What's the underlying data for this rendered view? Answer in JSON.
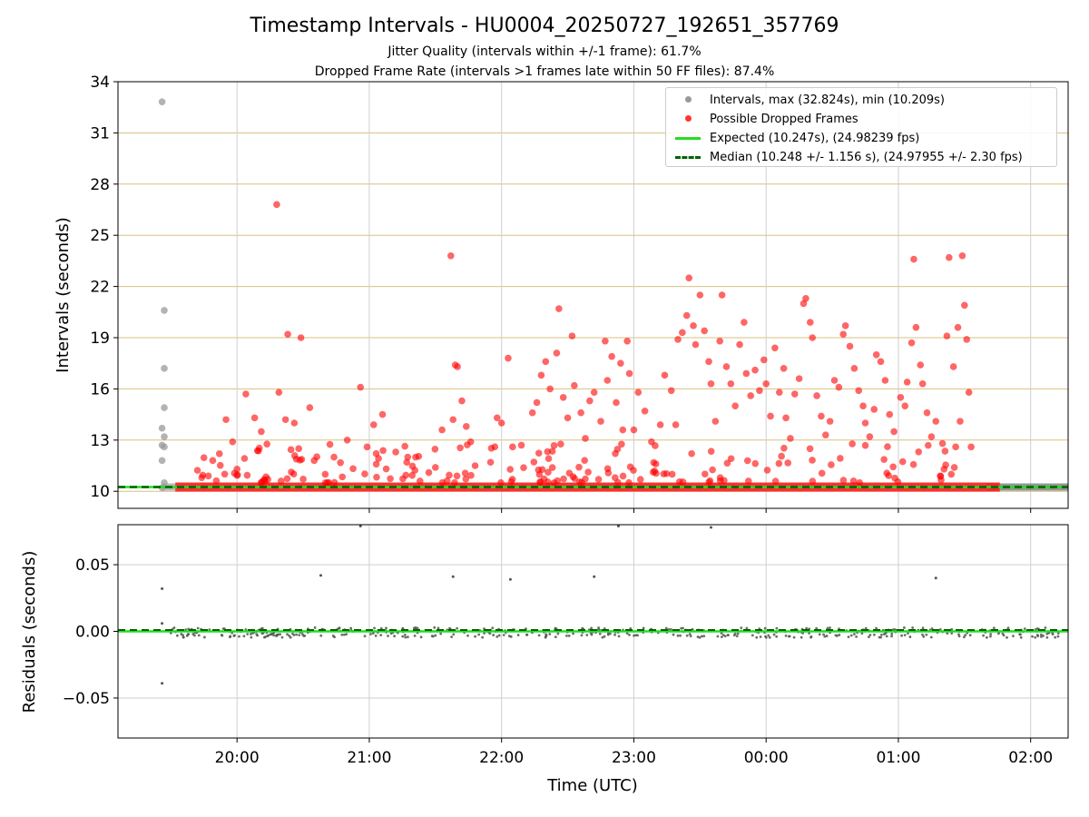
{
  "title": "Timestamp Intervals - HU0004_20250727_192651_357769",
  "subtitle_jitter": "Jitter Quality (intervals within +/-1 frame): 61.7%",
  "subtitle_dropped": "Dropped Frame Rate (intervals >1 frames late within 50 FF files): 87.4%",
  "colors": {
    "intervals": "#999999",
    "dropped": "#ff0000",
    "expected": "#22dd22",
    "median": "#006400",
    "hgrid": "#d8c080",
    "vgrid": "#cfcfcf",
    "residual": "#555555"
  },
  "chart_data": [
    {
      "type": "scatter",
      "ylabel": "Intervals (seconds)",
      "xlim": [
        "19:06",
        "02:17"
      ],
      "ylim": [
        9.0,
        34.0
      ],
      "yticks": [
        10,
        13,
        16,
        19,
        22,
        25,
        28,
        31,
        34
      ],
      "grid": true,
      "legend_position": "top-right",
      "legend": [
        "Intervals, max (32.824s), min (10.209s)",
        "Possible Dropped Frames",
        "Expected (10.247s), (24.98239 fps)",
        "Median (10.248 +/- 1.156 s), (24.97955 +/- 2.30 fps)"
      ],
      "expected": 10.247,
      "median": 10.248,
      "series": [
        {
          "name": "Intervals, max (32.824s), min (10.209s)",
          "points": [
            [
              "19:26",
              32.82
            ],
            [
              "19:27",
              20.6
            ],
            [
              "19:27",
              17.2
            ],
            [
              "19:27",
              14.9
            ],
            [
              "19:26",
              13.7
            ],
            [
              "19:27",
              13.2
            ],
            [
              "19:26",
              12.7
            ],
            [
              "19:27",
              12.6
            ],
            [
              "19:26",
              11.8
            ],
            [
              "19:27",
              10.5
            ],
            [
              "19:26",
              10.21
            ]
          ]
        },
        {
          "name": "Possible Dropped Frames",
          "points": [
            [
              "20:18",
              26.8
            ],
            [
              "20:23",
              19.2
            ],
            [
              "20:29",
              19.0
            ],
            [
              "20:19",
              15.8
            ],
            [
              "20:04",
              15.7
            ],
            [
              "20:22",
              14.2
            ],
            [
              "20:26",
              14.0
            ],
            [
              "20:33",
              14.9
            ],
            [
              "20:08",
              14.3
            ],
            [
              "20:11",
              13.5
            ],
            [
              "20:28",
              12.5
            ],
            [
              "20:35",
              11.8
            ],
            [
              "19:55",
              14.2
            ],
            [
              "19:58",
              12.9
            ],
            [
              "20:00",
              11.3
            ],
            [
              "19:52",
              12.2
            ],
            [
              "19:49",
              11.8
            ],
            [
              "19:47",
              10.9
            ],
            [
              "20:14",
              10.7
            ],
            [
              "20:40",
              11.0
            ],
            [
              "20:56",
              16.1
            ],
            [
              "21:06",
              14.5
            ],
            [
              "20:50",
              13.0
            ],
            [
              "20:59",
              12.6
            ],
            [
              "21:02",
              13.9
            ],
            [
              "20:44",
              12.0
            ],
            [
              "21:12",
              12.3
            ],
            [
              "21:17",
              11.7
            ],
            [
              "21:21",
              12.0
            ],
            [
              "21:27",
              11.1
            ],
            [
              "21:37",
              23.8
            ],
            [
              "21:39",
              17.4
            ],
            [
              "21:40",
              17.3
            ],
            [
              "21:42",
              15.3
            ],
            [
              "21:38",
              14.2
            ],
            [
              "21:44",
              13.8
            ],
            [
              "21:46",
              12.9
            ],
            [
              "21:33",
              13.6
            ],
            [
              "21:30",
              11.4
            ],
            [
              "21:48",
              11.5
            ],
            [
              "22:03",
              17.8
            ],
            [
              "21:58",
              14.3
            ],
            [
              "22:00",
              14.0
            ],
            [
              "22:05",
              12.6
            ],
            [
              "21:55",
              11.7
            ],
            [
              "22:09",
              12.7
            ],
            [
              "22:14",
              14.6
            ],
            [
              "22:16",
              15.2
            ],
            [
              "22:18",
              16.8
            ],
            [
              "22:20",
              17.6
            ],
            [
              "22:22",
              16.0
            ],
            [
              "22:25",
              18.1
            ],
            [
              "22:26",
              20.7
            ],
            [
              "22:28",
              15.5
            ],
            [
              "22:30",
              14.3
            ],
            [
              "22:32",
              19.1
            ],
            [
              "22:33",
              16.2
            ],
            [
              "22:36",
              14.6
            ],
            [
              "22:38",
              13.1
            ],
            [
              "22:40",
              15.3
            ],
            [
              "22:42",
              15.8
            ],
            [
              "22:45",
              14.1
            ],
            [
              "22:47",
              18.8
            ],
            [
              "22:48",
              16.5
            ],
            [
              "22:50",
              17.9
            ],
            [
              "22:52",
              15.2
            ],
            [
              "22:54",
              17.5
            ],
            [
              "22:55",
              13.6
            ],
            [
              "22:57",
              18.8
            ],
            [
              "22:58",
              16.9
            ],
            [
              "23:00",
              13.6
            ],
            [
              "23:02",
              15.8
            ],
            [
              "23:05",
              14.7
            ],
            [
              "23:08",
              12.9
            ],
            [
              "23:10",
              11.6
            ],
            [
              "23:12",
              13.9
            ],
            [
              "23:14",
              16.8
            ],
            [
              "23:17",
              15.9
            ],
            [
              "23:19",
              13.9
            ],
            [
              "23:20",
              18.9
            ],
            [
              "23:22",
              19.3
            ],
            [
              "23:24",
              20.3
            ],
            [
              "23:25",
              22.5
            ],
            [
              "23:27",
              19.7
            ],
            [
              "23:28",
              18.6
            ],
            [
              "23:30",
              21.5
            ],
            [
              "23:32",
              19.4
            ],
            [
              "23:34",
              17.6
            ],
            [
              "23:35",
              16.3
            ],
            [
              "23:37",
              14.1
            ],
            [
              "23:39",
              18.8
            ],
            [
              "23:40",
              21.5
            ],
            [
              "23:42",
              17.3
            ],
            [
              "23:44",
              16.3
            ],
            [
              "23:46",
              15.0
            ],
            [
              "23:48",
              18.6
            ],
            [
              "23:50",
              19.9
            ],
            [
              "23:51",
              16.9
            ],
            [
              "23:53",
              15.6
            ],
            [
              "23:55",
              17.1
            ],
            [
              "23:57",
              15.9
            ],
            [
              "23:59",
              17.7
            ],
            [
              "00:00",
              16.3
            ],
            [
              "00:02",
              14.4
            ],
            [
              "00:04",
              18.4
            ],
            [
              "00:06",
              15.8
            ],
            [
              "00:08",
              17.2
            ],
            [
              "00:09",
              14.3
            ],
            [
              "00:11",
              13.1
            ],
            [
              "00:13",
              15.7
            ],
            [
              "00:15",
              16.6
            ],
            [
              "00:17",
              21.0
            ],
            [
              "00:18",
              21.3
            ],
            [
              "00:20",
              19.9
            ],
            [
              "00:21",
              19.0
            ],
            [
              "00:23",
              15.6
            ],
            [
              "00:25",
              14.4
            ],
            [
              "00:27",
              13.3
            ],
            [
              "00:29",
              14.1
            ],
            [
              "00:31",
              16.5
            ],
            [
              "00:33",
              16.1
            ],
            [
              "00:35",
              19.2
            ],
            [
              "00:36",
              19.7
            ],
            [
              "00:38",
              18.5
            ],
            [
              "00:40",
              17.2
            ],
            [
              "00:42",
              15.9
            ],
            [
              "00:44",
              15.0
            ],
            [
              "00:45",
              14.0
            ],
            [
              "00:47",
              13.2
            ],
            [
              "00:49",
              14.8
            ],
            [
              "00:50",
              18.0
            ],
            [
              "00:52",
              17.6
            ],
            [
              "00:54",
              16.5
            ],
            [
              "00:56",
              14.5
            ],
            [
              "00:58",
              13.5
            ],
            [
              "01:01",
              15.5
            ],
            [
              "01:03",
              15.0
            ],
            [
              "01:04",
              16.4
            ],
            [
              "01:06",
              18.7
            ],
            [
              "01:07",
              23.6
            ],
            [
              "01:08",
              19.6
            ],
            [
              "01:10",
              17.4
            ],
            [
              "01:11",
              16.3
            ],
            [
              "01:13",
              14.6
            ],
            [
              "01:15",
              13.2
            ],
            [
              "01:17",
              14.1
            ],
            [
              "01:20",
              12.8
            ],
            [
              "01:23",
              23.7
            ],
            [
              "01:25",
              17.3
            ],
            [
              "01:22",
              19.1
            ],
            [
              "01:27",
              19.6
            ],
            [
              "01:29",
              23.8
            ],
            [
              "01:30",
              20.9
            ],
            [
              "01:31",
              18.9
            ],
            [
              "01:32",
              15.8
            ],
            [
              "01:28",
              14.1
            ],
            [
              "01:26",
              12.6
            ],
            [
              "01:33",
              12.6
            ],
            [
              "01:24",
              11.0
            ],
            [
              "01:19",
              10.9
            ],
            [
              "19:44",
              10.8
            ],
            [
              "20:20",
              10.6
            ],
            [
              "21:23",
              10.6
            ],
            [
              "22:44",
              10.7
            ],
            [
              "23:52",
              10.6
            ]
          ]
        }
      ]
    },
    {
      "type": "scatter",
      "xlabel": "Time (UTC)",
      "ylabel": "Residuals (seconds)",
      "xlim": [
        "19:06",
        "02:17"
      ],
      "ylim": [
        -0.08,
        0.08
      ],
      "xticks": [
        "20:00",
        "21:00",
        "22:00",
        "23:00",
        "00:00",
        "01:00",
        "02:00"
      ],
      "yticks": [
        -0.05,
        0.0,
        0.05
      ],
      "ytick_labels": [
        "−0.05",
        "0.00",
        "0.05"
      ],
      "grid": true,
      "outliers": [
        [
          "19:26",
          0.032
        ],
        [
          "19:26",
          0.006
        ],
        [
          "19:26",
          -0.039
        ],
        [
          "20:38",
          0.042
        ],
        [
          "21:38",
          0.041
        ],
        [
          "22:04",
          0.039
        ],
        [
          "22:42",
          0.041
        ],
        [
          "01:17",
          0.04
        ],
        [
          "20:56",
          0.079
        ],
        [
          "23:35",
          0.078
        ],
        [
          "22:53",
          0.079
        ]
      ]
    }
  ]
}
